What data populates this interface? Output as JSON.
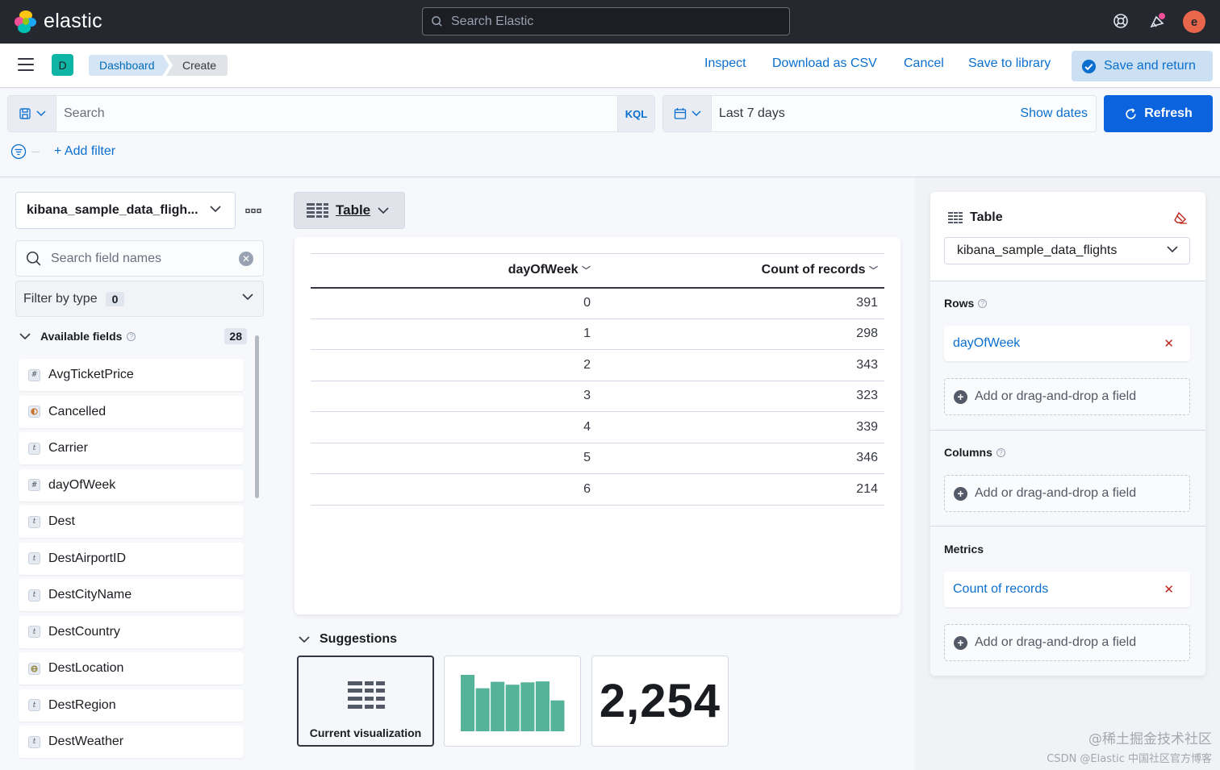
{
  "header": {
    "brand": "elastic",
    "search_placeholder": "Search Elastic",
    "avatar_initial": "e",
    "accent": "#0b64dd"
  },
  "appbar": {
    "space_initial": "D",
    "breadcrumbs": [
      "Dashboard",
      "Create"
    ],
    "links": [
      "Inspect",
      "Download as CSV",
      "Cancel",
      "Save to library"
    ],
    "save_return": "Save and return"
  },
  "query": {
    "placeholder": "Search",
    "language": "KQL",
    "date_range": "Last 7 days",
    "show_dates": "Show dates",
    "refresh": "Refresh",
    "add_filter": "+ Add filter"
  },
  "fields_panel": {
    "index_pattern": "kibana_sample_data_fligh...",
    "search_placeholder": "Search field names",
    "filter_by_type": "Filter by type",
    "filter_count": "0",
    "available_label": "Available fields",
    "available_count": "28",
    "fields": [
      {
        "name": "AvgTicketPrice",
        "type": "#"
      },
      {
        "name": "Cancelled",
        "type": "bool"
      },
      {
        "name": "Carrier",
        "type": "t"
      },
      {
        "name": "dayOfWeek",
        "type": "#"
      },
      {
        "name": "Dest",
        "type": "t"
      },
      {
        "name": "DestAirportID",
        "type": "t"
      },
      {
        "name": "DestCityName",
        "type": "t"
      },
      {
        "name": "DestCountry",
        "type": "t"
      },
      {
        "name": "DestLocation",
        "type": "geo"
      },
      {
        "name": "DestRegion",
        "type": "t"
      },
      {
        "name": "DestWeather",
        "type": "t"
      }
    ]
  },
  "workspace": {
    "chart_type": "Table",
    "columns": [
      "dayOfWeek",
      "Count of records"
    ],
    "rows": [
      [
        "0",
        "391"
      ],
      [
        "1",
        "298"
      ],
      [
        "2",
        "343"
      ],
      [
        "3",
        "323"
      ],
      [
        "4",
        "339"
      ],
      [
        "5",
        "346"
      ],
      [
        "6",
        "214"
      ]
    ],
    "suggestions_title": "Suggestions",
    "suggestion_current": "Current visualization",
    "suggestion_metric": "2,254",
    "suggestion_bar_color": "#54b399",
    "suggestion_bars": [
      391,
      298,
      343,
      323,
      339,
      346,
      214
    ]
  },
  "config_panel": {
    "title": "Table",
    "index": "kibana_sample_data_flights",
    "rows_label": "Rows",
    "rows_field": "dayOfWeek",
    "columns_label": "Columns",
    "metrics_label": "Metrics",
    "metrics_field": "Count of records",
    "add_field": "Add or drag-and-drop a field"
  },
  "watermark": {
    "line1": "@稀土掘金技术社区",
    "line2": "CSDN @Elastic 中国社区官方博客"
  }
}
